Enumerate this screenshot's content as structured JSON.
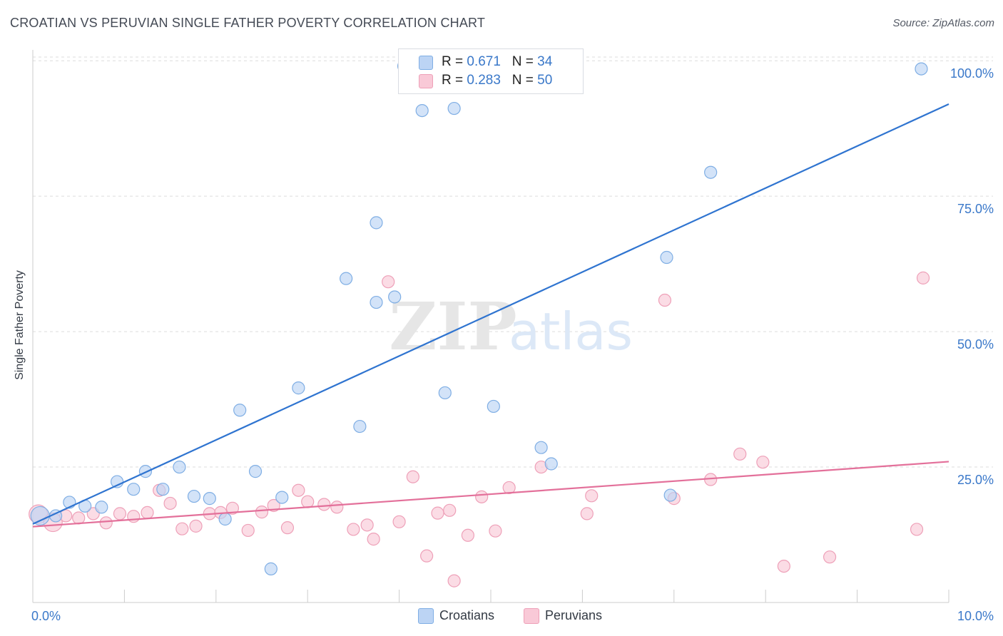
{
  "title": "CROATIAN VS PERUVIAN SINGLE FATHER POVERTY CORRELATION CHART",
  "source": "Source: ZipAtlas.com",
  "watermark": {
    "zip": "ZIP",
    "atlas": "atlas"
  },
  "legend": {
    "rows": [
      {
        "r_label": "R = ",
        "r_value": "0.671",
        "n_label": "N = ",
        "n_value": "34"
      },
      {
        "r_label": "R = ",
        "r_value": "0.283",
        "n_label": "N = ",
        "n_value": "50"
      }
    ]
  },
  "bottom_legend": {
    "croatians": "Croatians",
    "peruvians": "Peruvians"
  },
  "colors": {
    "croatians_fill": "#bcd4f4",
    "croatians_stroke": "#7faee4",
    "croatians_line": "#2f74d0",
    "peruvians_fill": "#f9c9d7",
    "peruvians_stroke": "#eea0b8",
    "peruvians_line": "#e3709a",
    "tick_label": "#3a78c9",
    "grid": "#dddddd"
  },
  "chart_data": {
    "type": "scatter",
    "title": "CROATIAN VS PERUVIAN SINGLE FATHER POVERTY CORRELATION CHART",
    "xlabel": "",
    "ylabel": "Single Father Poverty",
    "xlim": [
      0,
      10
    ],
    "ylim": [
      0,
      102
    ],
    "x_tick_labels": [
      "0.0%",
      "10.0%"
    ],
    "y_ticks": [
      25,
      50,
      75,
      100
    ],
    "y_tick_labels": [
      "25.0%",
      "50.0%",
      "75.0%",
      "100.0%"
    ],
    "grid": "horizontal dashed",
    "legend_position": "top-center",
    "series": [
      {
        "name": "Croatians",
        "r": 0.671,
        "n": 34,
        "trend": {
          "x": [
            0,
            10
          ],
          "y": [
            14.5,
            92.0
          ]
        },
        "points": [
          {
            "x": 0.08,
            "y": 16.0,
            "big": true
          },
          {
            "x": 0.25,
            "y": 16.0
          },
          {
            "x": 0.4,
            "y": 18.5
          },
          {
            "x": 0.57,
            "y": 17.8
          },
          {
            "x": 0.75,
            "y": 17.6
          },
          {
            "x": 0.92,
            "y": 22.3
          },
          {
            "x": 1.1,
            "y": 20.9
          },
          {
            "x": 1.23,
            "y": 24.2
          },
          {
            "x": 1.42,
            "y": 20.9
          },
          {
            "x": 1.6,
            "y": 25.0
          },
          {
            "x": 1.76,
            "y": 19.6
          },
          {
            "x": 1.93,
            "y": 19.2
          },
          {
            "x": 2.1,
            "y": 15.4
          },
          {
            "x": 2.26,
            "y": 35.5
          },
          {
            "x": 2.43,
            "y": 24.2
          },
          {
            "x": 2.6,
            "y": 6.2
          },
          {
            "x": 2.72,
            "y": 19.4
          },
          {
            "x": 2.9,
            "y": 39.6
          },
          {
            "x": 3.42,
            "y": 59.8
          },
          {
            "x": 3.75,
            "y": 55.4
          },
          {
            "x": 3.57,
            "y": 32.5
          },
          {
            "x": 3.75,
            "y": 70.1
          },
          {
            "x": 3.95,
            "y": 56.4
          },
          {
            "x": 4.25,
            "y": 90.8
          },
          {
            "x": 4.5,
            "y": 38.7
          },
          {
            "x": 4.6,
            "y": 91.2
          },
          {
            "x": 4.05,
            "y": 99.0
          },
          {
            "x": 5.03,
            "y": 36.2
          },
          {
            "x": 5.55,
            "y": 28.6
          },
          {
            "x": 5.66,
            "y": 25.6
          },
          {
            "x": 6.92,
            "y": 63.7
          },
          {
            "x": 6.96,
            "y": 19.8
          },
          {
            "x": 7.4,
            "y": 79.4
          },
          {
            "x": 9.7,
            "y": 98.5
          }
        ]
      },
      {
        "name": "Peruvians",
        "r": 0.283,
        "n": 50,
        "trend": {
          "x": [
            0,
            10
          ],
          "y": [
            14.0,
            26.0
          ]
        },
        "points": [
          {
            "x": 0.06,
            "y": 16.3,
            "big": true
          },
          {
            "x": 0.22,
            "y": 14.8,
            "big": true
          },
          {
            "x": 0.36,
            "y": 16.0
          },
          {
            "x": 0.5,
            "y": 15.6
          },
          {
            "x": 0.66,
            "y": 16.4
          },
          {
            "x": 0.8,
            "y": 14.7
          },
          {
            "x": 0.95,
            "y": 16.4
          },
          {
            "x": 1.1,
            "y": 15.9
          },
          {
            "x": 1.25,
            "y": 16.6
          },
          {
            "x": 1.38,
            "y": 20.7
          },
          {
            "x": 1.5,
            "y": 18.3
          },
          {
            "x": 1.63,
            "y": 13.6
          },
          {
            "x": 1.78,
            "y": 14.1
          },
          {
            "x": 1.93,
            "y": 16.4
          },
          {
            "x": 2.05,
            "y": 16.6
          },
          {
            "x": 2.18,
            "y": 17.4
          },
          {
            "x": 2.35,
            "y": 13.3
          },
          {
            "x": 2.5,
            "y": 16.7
          },
          {
            "x": 2.63,
            "y": 17.9
          },
          {
            "x": 2.78,
            "y": 13.8
          },
          {
            "x": 2.9,
            "y": 20.7
          },
          {
            "x": 3.0,
            "y": 18.6
          },
          {
            "x": 3.18,
            "y": 18.1
          },
          {
            "x": 3.32,
            "y": 17.6
          },
          {
            "x": 3.5,
            "y": 13.5
          },
          {
            "x": 3.65,
            "y": 14.3
          },
          {
            "x": 3.72,
            "y": 11.7
          },
          {
            "x": 3.88,
            "y": 59.2
          },
          {
            "x": 4.0,
            "y": 14.9
          },
          {
            "x": 4.15,
            "y": 23.2
          },
          {
            "x": 4.3,
            "y": 8.6
          },
          {
            "x": 4.42,
            "y": 16.5
          },
          {
            "x": 4.55,
            "y": 17.0
          },
          {
            "x": 4.6,
            "y": 4.0
          },
          {
            "x": 4.75,
            "y": 12.4
          },
          {
            "x": 4.9,
            "y": 19.5
          },
          {
            "x": 5.05,
            "y": 13.2
          },
          {
            "x": 5.2,
            "y": 21.2
          },
          {
            "x": 5.55,
            "y": 25.0
          },
          {
            "x": 6.05,
            "y": 16.4
          },
          {
            "x": 6.1,
            "y": 19.7
          },
          {
            "x": 6.9,
            "y": 55.8
          },
          {
            "x": 7.0,
            "y": 19.2
          },
          {
            "x": 7.4,
            "y": 22.7
          },
          {
            "x": 7.72,
            "y": 27.4
          },
          {
            "x": 7.97,
            "y": 25.9
          },
          {
            "x": 8.2,
            "y": 6.7
          },
          {
            "x": 8.7,
            "y": 8.4
          },
          {
            "x": 9.65,
            "y": 13.5
          },
          {
            "x": 9.72,
            "y": 59.9
          }
        ]
      }
    ]
  }
}
